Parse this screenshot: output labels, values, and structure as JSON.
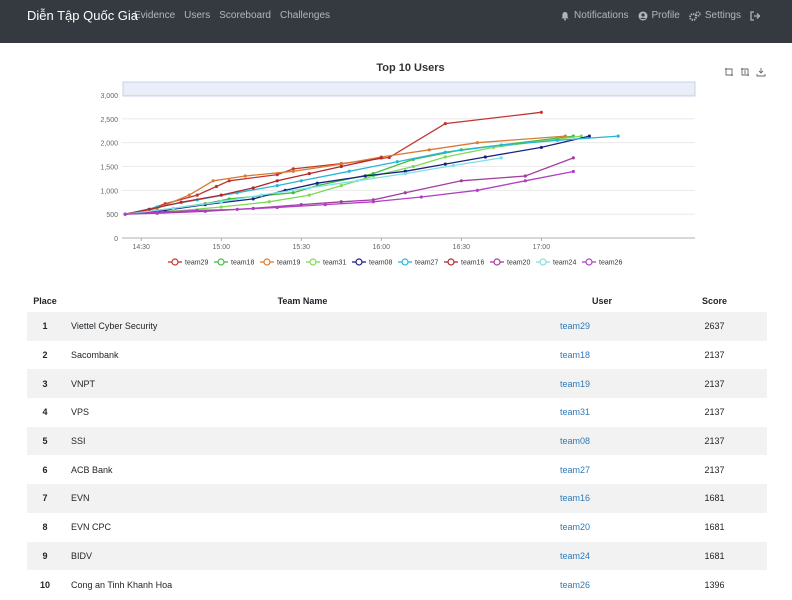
{
  "nav": {
    "brand": "Diễn Tập Quốc Gia",
    "links": [
      "Evidence",
      "Users",
      "Scoreboard",
      "Challenges"
    ],
    "notifications": "Notifications",
    "profile": "Profile",
    "settings": "Settings",
    "icons": {
      "notifications": "bell-icon",
      "profile": "user-circle-icon",
      "settings": "cogs-icon",
      "logout": "sign-out-icon"
    }
  },
  "chart_data": {
    "type": "line",
    "title": "Top 10 Users",
    "xlabel": "",
    "ylabel": "",
    "ylim": [
      0,
      3000
    ],
    "y_ticks": [
      0,
      500,
      1000,
      1500,
      2000,
      2500,
      3000
    ],
    "y_tick_labels": [
      "0",
      "500",
      "1,000",
      "1,500",
      "2,000",
      "2,500",
      "3,000"
    ],
    "xlim": [
      14.38,
      17.96
    ],
    "x_ticks": [
      14.5,
      15.0,
      15.5,
      16.0,
      16.5,
      17.0
    ],
    "x_tick_labels": [
      "14:30",
      "15:00",
      "15:30",
      "16:00",
      "16:30",
      "17:00"
    ],
    "legend_position": "bottom",
    "grid": true,
    "series": [
      {
        "name": "team29",
        "color": "#c23531",
        "x": [
          14.4,
          14.55,
          14.65,
          14.85,
          14.97,
          15.05,
          15.35,
          15.45,
          15.75,
          16.05,
          16.4,
          17.0
        ],
        "y": [
          500,
          600,
          720,
          900,
          1080,
          1200,
          1330,
          1450,
          1560,
          1690,
          2400,
          2637
        ]
      },
      {
        "name": "team18",
        "color": "#3fbf3f",
        "x": [
          14.4,
          14.7,
          14.9,
          15.05,
          15.45,
          15.6,
          15.95,
          16.2,
          16.5,
          17.2
        ],
        "y": [
          500,
          620,
          720,
          820,
          950,
          1100,
          1350,
          1650,
          1850,
          2137
        ]
      },
      {
        "name": "team19",
        "color": "#d87c35",
        "x": [
          14.4,
          14.6,
          14.8,
          14.95,
          15.15,
          15.45,
          15.75,
          16.0,
          16.3,
          16.6,
          17.15
        ],
        "y": [
          500,
          620,
          900,
          1200,
          1300,
          1400,
          1550,
          1700,
          1850,
          2000,
          2137
        ]
      },
      {
        "name": "team31",
        "color": "#7ed957",
        "x": [
          14.4,
          14.7,
          15.0,
          15.3,
          15.55,
          15.75,
          15.95,
          16.2,
          16.4,
          16.7,
          17.25
        ],
        "y": [
          500,
          560,
          650,
          760,
          900,
          1100,
          1300,
          1500,
          1700,
          1900,
          2137
        ]
      },
      {
        "name": "team08",
        "color": "#1a237e",
        "x": [
          14.4,
          14.65,
          14.9,
          15.2,
          15.4,
          15.6,
          15.9,
          16.15,
          16.4,
          16.65,
          17.0,
          17.3
        ],
        "y": [
          500,
          580,
          700,
          820,
          1000,
          1150,
          1300,
          1400,
          1550,
          1700,
          1900,
          2137
        ]
      },
      {
        "name": "team27",
        "color": "#29b6d6",
        "x": [
          14.4,
          14.6,
          14.85,
          15.1,
          15.35,
          15.5,
          15.8,
          16.1,
          16.4,
          16.75,
          17.1,
          17.48
        ],
        "y": [
          500,
          650,
          800,
          950,
          1100,
          1200,
          1400,
          1600,
          1800,
          1950,
          2050,
          2137
        ]
      },
      {
        "name": "team16",
        "color": "#b3262c",
        "x": [
          14.4,
          14.55,
          14.75,
          15.0,
          15.2,
          15.35,
          15.55,
          15.75,
          16.0
        ],
        "y": [
          500,
          600,
          750,
          900,
          1050,
          1200,
          1350,
          1500,
          1681
        ]
      },
      {
        "name": "team20",
        "color": "#a33ea1",
        "x": [
          14.4,
          14.6,
          14.9,
          15.2,
          15.5,
          15.75,
          15.95,
          16.15,
          16.5,
          16.9,
          17.2
        ],
        "y": [
          500,
          520,
          560,
          620,
          700,
          760,
          800,
          950,
          1200,
          1300,
          1681
        ]
      },
      {
        "name": "team24",
        "color": "#7fe0e8",
        "x": [
          14.4,
          14.7,
          15.0,
          15.25,
          15.55,
          15.85,
          16.15,
          16.45,
          16.75
        ],
        "y": [
          500,
          620,
          760,
          900,
          1050,
          1200,
          1350,
          1520,
          1681
        ]
      },
      {
        "name": "team26",
        "color": "#b23fc8",
        "x": [
          14.4,
          14.6,
          14.85,
          15.1,
          15.35,
          15.65,
          15.95,
          16.25,
          16.6,
          16.9,
          17.2
        ],
        "y": [
          500,
          540,
          580,
          600,
          640,
          700,
          760,
          860,
          1000,
          1200,
          1396
        ]
      }
    ]
  },
  "table": {
    "headers": {
      "place": "Place",
      "team": "Team Name",
      "user": "User",
      "score": "Score"
    },
    "rows": [
      {
        "place": "1",
        "team": "Viettel Cyber Security",
        "user": "team29",
        "score": "2637"
      },
      {
        "place": "2",
        "team": "Sacombank",
        "user": "team18",
        "score": "2137"
      },
      {
        "place": "3",
        "team": "VNPT",
        "user": "team19",
        "score": "2137"
      },
      {
        "place": "4",
        "team": "VPS",
        "user": "team31",
        "score": "2137"
      },
      {
        "place": "5",
        "team": "SSI",
        "user": "team08",
        "score": "2137"
      },
      {
        "place": "6",
        "team": "ACB Bank",
        "user": "team27",
        "score": "2137"
      },
      {
        "place": "7",
        "team": "EVN",
        "user": "team16",
        "score": "1681"
      },
      {
        "place": "8",
        "team": "EVN CPC",
        "user": "team20",
        "score": "1681"
      },
      {
        "place": "9",
        "team": "BIDV",
        "user": "team24",
        "score": "1681"
      },
      {
        "place": "10",
        "team": "Cong an Tinh Khanh Hoa",
        "user": "team26",
        "score": "1396"
      }
    ]
  }
}
